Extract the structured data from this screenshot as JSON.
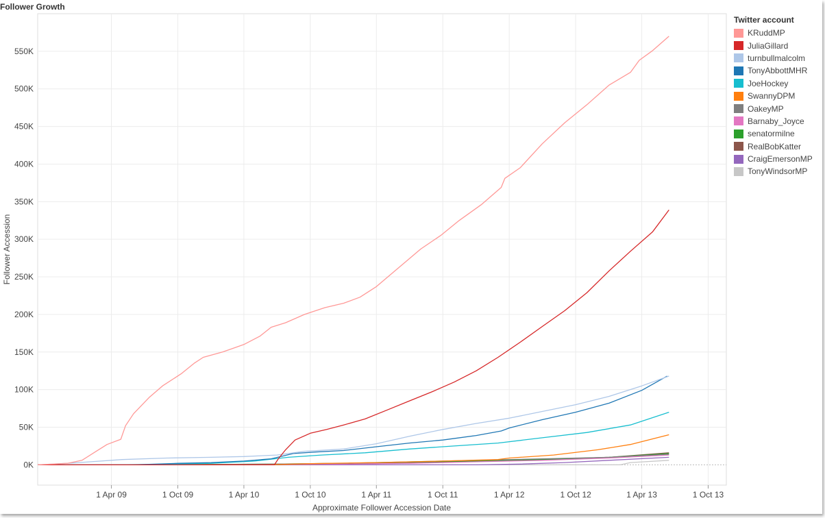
{
  "chart_data": {
    "type": "line",
    "title": "Follower Growth",
    "xlabel": "Approximate Follower Accession Date",
    "ylabel": "Follower Accession",
    "xlim": [
      "2008-09-10",
      "2013-11-20"
    ],
    "ylim": [
      -27000,
      600000
    ],
    "x_ticks": [
      {
        "date": "2009-04-01",
        "label": "1 Apr 09"
      },
      {
        "date": "2009-10-01",
        "label": "1 Oct 09"
      },
      {
        "date": "2010-04-01",
        "label": "1 Apr 10"
      },
      {
        "date": "2010-10-01",
        "label": "1 Oct 10"
      },
      {
        "date": "2011-04-01",
        "label": "1 Apr 11"
      },
      {
        "date": "2011-10-01",
        "label": "1 Oct 11"
      },
      {
        "date": "2012-04-01",
        "label": "1 Apr 12"
      },
      {
        "date": "2012-10-01",
        "label": "1 Oct 12"
      },
      {
        "date": "2013-04-01",
        "label": "1 Apr 13"
      },
      {
        "date": "2013-10-01",
        "label": "1 Oct 13"
      }
    ],
    "y_ticks": [
      {
        "value": 0,
        "label": "0K"
      },
      {
        "value": 50000,
        "label": "50K"
      },
      {
        "value": 100000,
        "label": "100K"
      },
      {
        "value": 150000,
        "label": "150K"
      },
      {
        "value": 200000,
        "label": "200K"
      },
      {
        "value": 250000,
        "label": "250K"
      },
      {
        "value": 300000,
        "label": "300K"
      },
      {
        "value": 350000,
        "label": "350K"
      },
      {
        "value": 400000,
        "label": "400K"
      },
      {
        "value": 450000,
        "label": "450K"
      },
      {
        "value": 500000,
        "label": "500K"
      },
      {
        "value": 550000,
        "label": "550K"
      }
    ],
    "grid": true,
    "legend": {
      "title": "Twitter account",
      "placement": "right"
    },
    "series": [
      {
        "name": "KRuddMP",
        "color": "#ff9896",
        "points": [
          [
            "2008-09-10",
            0
          ],
          [
            "2008-12-01",
            2000
          ],
          [
            "2009-01-10",
            6000
          ],
          [
            "2009-02-15",
            17000
          ],
          [
            "2009-03-20",
            27000
          ],
          [
            "2009-04-27",
            34000
          ],
          [
            "2009-05-10",
            52000
          ],
          [
            "2009-06-01",
            68000
          ],
          [
            "2009-07-15",
            90000
          ],
          [
            "2009-08-20",
            105000
          ],
          [
            "2009-10-10",
            121000
          ],
          [
            "2009-11-15",
            135000
          ],
          [
            "2009-12-10",
            143000
          ],
          [
            "2010-02-01",
            150000
          ],
          [
            "2010-04-01",
            160000
          ],
          [
            "2010-05-15",
            171000
          ],
          [
            "2010-06-15",
            183000
          ],
          [
            "2010-07-25",
            189000
          ],
          [
            "2010-09-15",
            200000
          ],
          [
            "2010-11-10",
            209000
          ],
          [
            "2011-01-01",
            215000
          ],
          [
            "2011-02-15",
            223000
          ],
          [
            "2011-04-01",
            237000
          ],
          [
            "2011-06-01",
            262000
          ],
          [
            "2011-08-01",
            287000
          ],
          [
            "2011-09-25",
            305000
          ],
          [
            "2011-11-15",
            325000
          ],
          [
            "2012-01-15",
            346000
          ],
          [
            "2012-03-10",
            369000
          ],
          [
            "2012-03-20",
            381000
          ],
          [
            "2012-05-01",
            395000
          ],
          [
            "2012-07-01",
            427000
          ],
          [
            "2012-09-01",
            455000
          ],
          [
            "2012-11-01",
            479000
          ],
          [
            "2013-01-01",
            505000
          ],
          [
            "2013-03-01",
            522000
          ],
          [
            "2013-03-25",
            538000
          ],
          [
            "2013-05-01",
            551000
          ],
          [
            "2013-06-15",
            570000
          ]
        ]
      },
      {
        "name": "JuliaGillard",
        "color": "#d62728",
        "points": [
          [
            "2008-09-10",
            0
          ],
          [
            "2010-06-24",
            0
          ],
          [
            "2010-07-05",
            8000
          ],
          [
            "2010-07-25",
            20000
          ],
          [
            "2010-08-20",
            33000
          ],
          [
            "2010-10-01",
            42000
          ],
          [
            "2010-11-15",
            47000
          ],
          [
            "2011-01-01",
            53000
          ],
          [
            "2011-03-01",
            61000
          ],
          [
            "2011-05-01",
            73000
          ],
          [
            "2011-07-01",
            85000
          ],
          [
            "2011-09-01",
            97000
          ],
          [
            "2011-11-01",
            110000
          ],
          [
            "2012-01-01",
            125000
          ],
          [
            "2012-03-01",
            143000
          ],
          [
            "2012-05-01",
            163000
          ],
          [
            "2012-07-01",
            184000
          ],
          [
            "2012-09-01",
            205000
          ],
          [
            "2012-11-01",
            229000
          ],
          [
            "2013-01-01",
            258000
          ],
          [
            "2013-03-01",
            284000
          ],
          [
            "2013-05-01",
            310000
          ],
          [
            "2013-06-15",
            339000
          ]
        ]
      },
      {
        "name": "turnbullmalcolm",
        "color": "#aec7e8",
        "points": [
          [
            "2008-09-10",
            0
          ],
          [
            "2008-12-01",
            2000
          ],
          [
            "2009-02-01",
            4000
          ],
          [
            "2009-05-01",
            7000
          ],
          [
            "2009-09-01",
            9000
          ],
          [
            "2010-01-01",
            10000
          ],
          [
            "2010-04-01",
            11000
          ],
          [
            "2010-07-01",
            13000
          ],
          [
            "2010-09-15",
            18000
          ],
          [
            "2011-01-01",
            21000
          ],
          [
            "2011-04-01",
            28000
          ],
          [
            "2011-07-01",
            38000
          ],
          [
            "2011-10-01",
            47000
          ],
          [
            "2012-01-01",
            55000
          ],
          [
            "2012-04-01",
            62000
          ],
          [
            "2012-07-01",
            71000
          ],
          [
            "2012-10-01",
            80000
          ],
          [
            "2013-01-01",
            91000
          ],
          [
            "2013-04-01",
            105000
          ],
          [
            "2013-06-15",
            118000
          ]
        ]
      },
      {
        "name": "TonyAbbottMHR",
        "color": "#1f77b4",
        "points": [
          [
            "2008-09-10",
            0
          ],
          [
            "2009-06-01",
            0
          ],
          [
            "2009-10-01",
            2000
          ],
          [
            "2010-01-01",
            3000
          ],
          [
            "2010-04-01",
            5000
          ],
          [
            "2010-06-15",
            8000
          ],
          [
            "2010-08-15",
            15000
          ],
          [
            "2010-10-15",
            17000
          ],
          [
            "2011-01-01",
            19000
          ],
          [
            "2011-04-01",
            24000
          ],
          [
            "2011-07-01",
            29000
          ],
          [
            "2011-10-01",
            33000
          ],
          [
            "2012-01-01",
            39000
          ],
          [
            "2012-03-10",
            45000
          ],
          [
            "2012-04-01",
            49000
          ],
          [
            "2012-07-01",
            60000
          ],
          [
            "2012-10-01",
            70000
          ],
          [
            "2013-01-01",
            82000
          ],
          [
            "2013-04-01",
            99000
          ],
          [
            "2013-06-10",
            118000
          ]
        ]
      },
      {
        "name": "JoeHockey",
        "color": "#17becf",
        "points": [
          [
            "2008-09-10",
            0
          ],
          [
            "2009-04-01",
            0
          ],
          [
            "2009-10-01",
            1000
          ],
          [
            "2010-01-01",
            2000
          ],
          [
            "2010-05-01",
            5000
          ],
          [
            "2010-08-01",
            10000
          ],
          [
            "2010-11-01",
            13000
          ],
          [
            "2011-03-01",
            16000
          ],
          [
            "2011-07-01",
            21000
          ],
          [
            "2011-11-01",
            25000
          ],
          [
            "2012-03-01",
            29000
          ],
          [
            "2012-07-01",
            36000
          ],
          [
            "2012-11-01",
            43000
          ],
          [
            "2013-03-01",
            53000
          ],
          [
            "2013-06-15",
            70000
          ]
        ]
      },
      {
        "name": "SwannyDPM",
        "color": "#ff7f0e",
        "points": [
          [
            "2008-09-10",
            0
          ],
          [
            "2010-06-01",
            0
          ],
          [
            "2010-10-01",
            1500
          ],
          [
            "2011-04-01",
            3000
          ],
          [
            "2011-10-01",
            5000
          ],
          [
            "2012-03-01",
            7000
          ],
          [
            "2012-04-01",
            9000
          ],
          [
            "2012-08-01",
            13000
          ],
          [
            "2012-12-01",
            20000
          ],
          [
            "2013-03-01",
            27000
          ],
          [
            "2013-06-15",
            40000
          ]
        ]
      },
      {
        "name": "OakeyMP",
        "color": "#7f7f7f",
        "points": [
          [
            "2008-09-10",
            0
          ],
          [
            "2009-07-01",
            0
          ],
          [
            "2010-07-01",
            1000
          ],
          [
            "2011-01-01",
            2000
          ],
          [
            "2011-07-01",
            4000
          ],
          [
            "2012-01-01",
            6000
          ],
          [
            "2012-07-01",
            8000
          ],
          [
            "2013-01-01",
            10000
          ],
          [
            "2013-06-15",
            14000
          ]
        ]
      },
      {
        "name": "Barnaby_Joyce",
        "color": "#e377c2",
        "points": [
          [
            "2008-09-10",
            0
          ],
          [
            "2010-01-01",
            0
          ],
          [
            "2011-01-01",
            1000
          ],
          [
            "2011-07-01",
            2000
          ],
          [
            "2012-01-01",
            4000
          ],
          [
            "2012-07-01",
            6000
          ],
          [
            "2013-01-01",
            9000
          ],
          [
            "2013-06-15",
            13000
          ]
        ]
      },
      {
        "name": "senatormilne",
        "color": "#2ca02c",
        "points": [
          [
            "2008-09-10",
            0
          ],
          [
            "2009-06-01",
            0
          ],
          [
            "2010-01-01",
            500
          ],
          [
            "2010-07-01",
            1000
          ],
          [
            "2011-01-01",
            2000
          ],
          [
            "2011-07-01",
            3500
          ],
          [
            "2012-01-01",
            5000
          ],
          [
            "2012-07-01",
            7000
          ],
          [
            "2013-01-01",
            10000
          ],
          [
            "2013-06-15",
            15000
          ]
        ]
      },
      {
        "name": "RealBobKatter",
        "color": "#8c564b",
        "points": [
          [
            "2008-09-10",
            0
          ],
          [
            "2010-06-01",
            0
          ],
          [
            "2011-01-01",
            1000
          ],
          [
            "2011-07-01",
            2500
          ],
          [
            "2012-01-01",
            5000
          ],
          [
            "2012-07-01",
            7000
          ],
          [
            "2013-01-01",
            10000
          ],
          [
            "2013-06-15",
            16000
          ]
        ]
      },
      {
        "name": "CraigEmersonMP",
        "color": "#9467bd",
        "points": [
          [
            "2008-09-10",
            0
          ],
          [
            "2012-01-01",
            0
          ],
          [
            "2012-05-01",
            1000
          ],
          [
            "2012-09-01",
            3000
          ],
          [
            "2013-01-01",
            6000
          ],
          [
            "2013-06-15",
            10000
          ]
        ]
      },
      {
        "name": "TonyWindsorMP",
        "color": "#c7c7c7",
        "points": [
          [
            "2008-09-10",
            0
          ],
          [
            "2013-02-01",
            0
          ],
          [
            "2013-03-01",
            3000
          ],
          [
            "2013-06-15",
            6000
          ]
        ]
      }
    ]
  }
}
